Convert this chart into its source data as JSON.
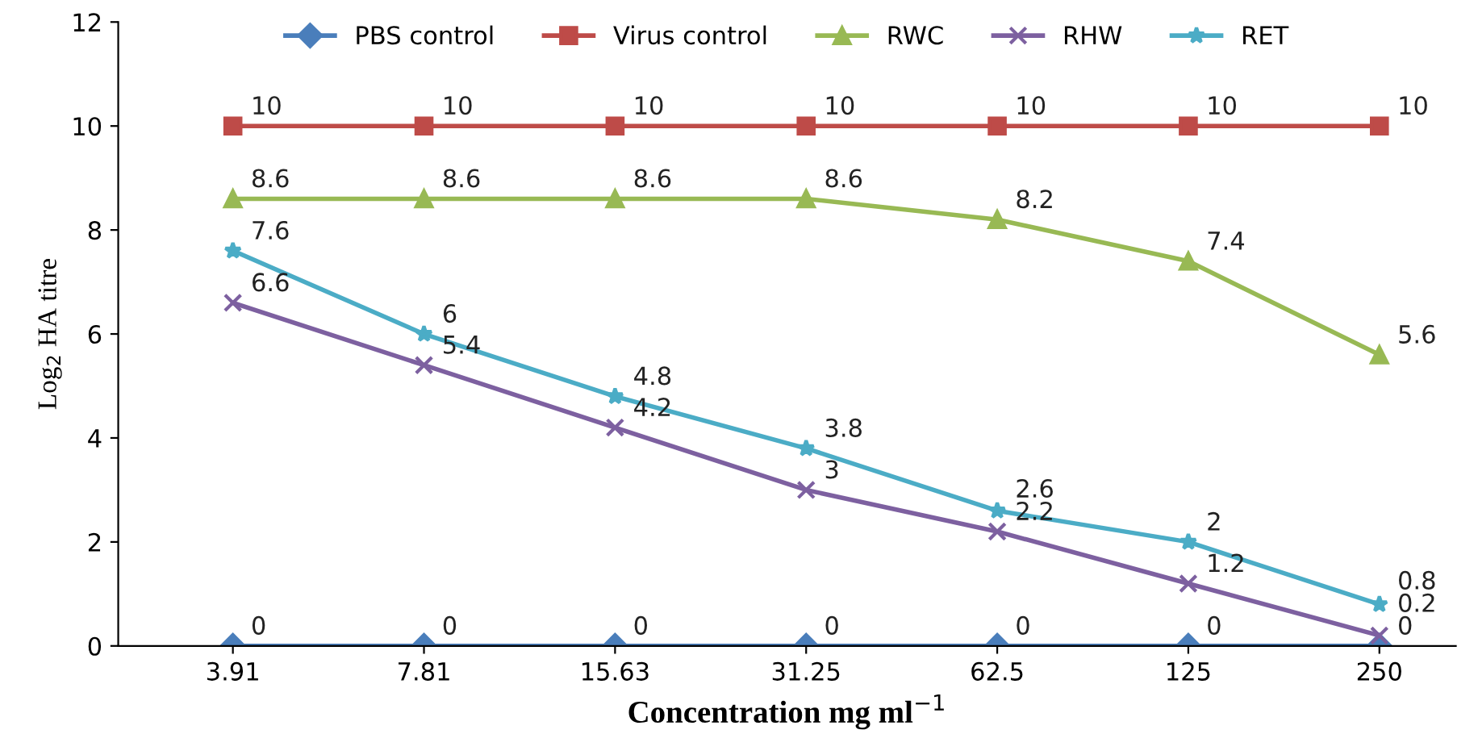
{
  "chart_data": {
    "type": "line",
    "xlabel": "Concentration mg ml$^{−1}$",
    "ylabel": "Log$_{2}$ HA titre",
    "categories": [
      "3.91",
      "7.81",
      "15.63",
      "31.25",
      "62.5",
      "125",
      "250"
    ],
    "series": [
      {
        "name": "PBS control",
        "color": "#4a7ebb",
        "marker": "diamond",
        "values": [
          0,
          0,
          0,
          0,
          0,
          0,
          0
        ]
      },
      {
        "name": "Virus control",
        "color": "#be4b48",
        "marker": "square",
        "values": [
          10,
          10,
          10,
          10,
          10,
          10,
          10
        ]
      },
      {
        "name": "RWC",
        "color": "#98b954",
        "marker": "triangle",
        "values": [
          8.6,
          8.6,
          8.6,
          8.6,
          8.2,
          7.4,
          5.6
        ]
      },
      {
        "name": "RHW",
        "color": "#7d60a0",
        "marker": "cross",
        "values": [
          6.6,
          5.4,
          4.2,
          3,
          2.2,
          1.2,
          0.2
        ]
      },
      {
        "name": "RET",
        "color": "#4bacc6",
        "marker": "star",
        "values": [
          7.6,
          6,
          4.8,
          3.8,
          2.6,
          2,
          0.8
        ]
      }
    ],
    "ylim": [
      0,
      12
    ],
    "yticks": [
      0,
      2,
      4,
      6,
      8,
      10,
      12
    ],
    "grid": false,
    "legend": "top",
    "data_labels": true
  }
}
